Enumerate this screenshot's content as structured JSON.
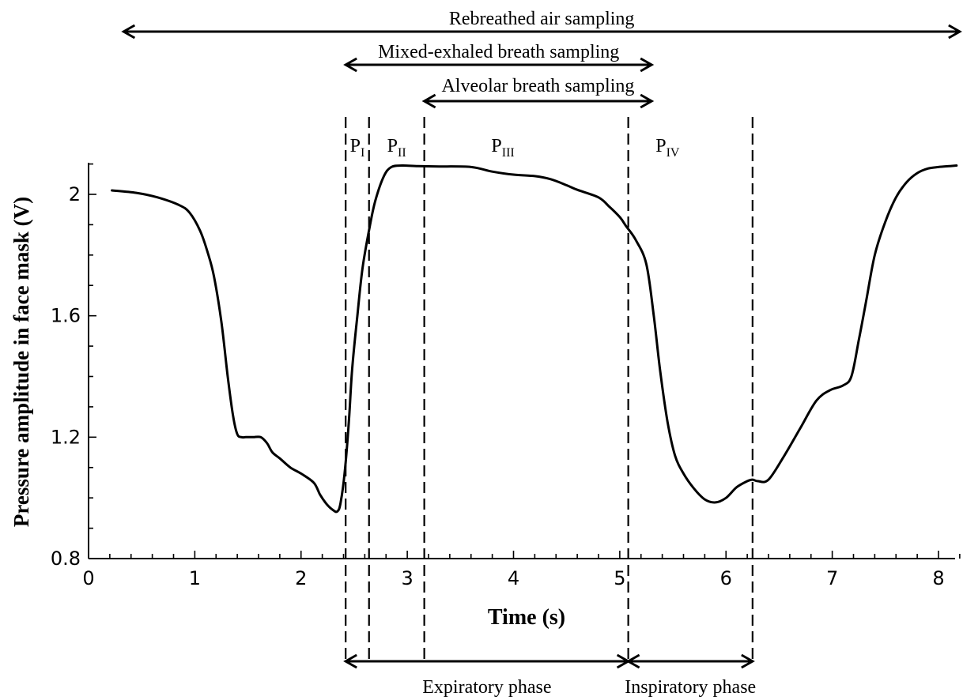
{
  "chart_data": {
    "type": "line",
    "title": "",
    "xlabel": "Time (s)",
    "ylabel": "Pressure amplitude in face mask (V)",
    "xlim": [
      0,
      8.2
    ],
    "ylim": [
      0.8,
      2.1
    ],
    "xticks": [
      0,
      1,
      2,
      3,
      4,
      5,
      6,
      7,
      8
    ],
    "xtick_labels": [
      "0",
      "1",
      "2",
      "3",
      "4",
      "5",
      "6",
      "7",
      "8"
    ],
    "yticks": [
      0.8,
      1.2,
      1.6,
      2.0
    ],
    "ytick_labels": [
      "0.8",
      "1.2",
      "1.6",
      "2"
    ],
    "grid": false,
    "series": [
      {
        "x": [
          0.22,
          0.45,
          0.65,
          0.85,
          0.95,
          1.05,
          1.12,
          1.18,
          1.25,
          1.31,
          1.36,
          1.4,
          1.44,
          1.48,
          1.55,
          1.62,
          1.68,
          1.73,
          1.8,
          1.9,
          2.0,
          2.12,
          2.18,
          2.24,
          2.3,
          2.34,
          2.37,
          2.41,
          2.45,
          2.48,
          2.53,
          2.58,
          2.65,
          2.7,
          2.78,
          2.85,
          2.95,
          3.1,
          3.3,
          3.6,
          3.8,
          4.0,
          4.2,
          4.35,
          4.5,
          4.6,
          4.8,
          4.9,
          5.0,
          5.06,
          5.15,
          5.25,
          5.32,
          5.38,
          5.45,
          5.52,
          5.6,
          5.7,
          5.8,
          5.9,
          6.0,
          6.1,
          6.2,
          6.25,
          6.3,
          6.4,
          6.55,
          6.7,
          6.85,
          6.98,
          7.1,
          7.18,
          7.25,
          7.32,
          7.4,
          7.5,
          7.6,
          7.7,
          7.8,
          7.9,
          8.0,
          8.1,
          8.17
        ],
        "values": [
          2.013,
          2.005,
          1.99,
          1.965,
          1.94,
          1.88,
          1.81,
          1.73,
          1.58,
          1.4,
          1.27,
          1.21,
          1.2,
          1.2,
          1.2,
          1.2,
          1.18,
          1.15,
          1.13,
          1.1,
          1.08,
          1.05,
          1.01,
          0.98,
          0.96,
          0.955,
          0.98,
          1.08,
          1.25,
          1.42,
          1.6,
          1.76,
          1.9,
          1.98,
          2.06,
          2.09,
          2.095,
          2.093,
          2.092,
          2.09,
          2.075,
          2.065,
          2.06,
          2.05,
          2.03,
          2.015,
          1.99,
          1.96,
          1.925,
          1.895,
          1.85,
          1.77,
          1.6,
          1.42,
          1.25,
          1.14,
          1.08,
          1.03,
          0.995,
          0.985,
          1.0,
          1.035,
          1.055,
          1.06,
          1.055,
          1.06,
          1.14,
          1.23,
          1.32,
          1.355,
          1.37,
          1.4,
          1.52,
          1.65,
          1.8,
          1.91,
          1.99,
          2.04,
          2.07,
          2.085,
          2.09,
          2.093,
          2.095
        ]
      }
    ],
    "phase_markers": [
      {
        "x": 2.42
      },
      {
        "x": 2.64
      },
      {
        "x": 3.16
      },
      {
        "x": 5.08
      },
      {
        "x": 6.25
      }
    ],
    "phase_labels": [
      {
        "base": "P",
        "sub": "I",
        "x": 2.53
      },
      {
        "base": "P",
        "sub": "II",
        "x": 2.9
      },
      {
        "base": "P",
        "sub": "III",
        "x": 3.9
      },
      {
        "base": "P",
        "sub": "IV",
        "x": 5.45
      }
    ],
    "sampling_ranges": [
      {
        "label": "Rebreathed air sampling",
        "x_start": 0.33,
        "x_end": 8.2
      },
      {
        "label": "Mixed-exhaled breath sampling",
        "x_start": 2.42,
        "x_end": 5.3
      },
      {
        "label": "Alveolar breath sampling",
        "x_start": 3.16,
        "x_end": 5.3
      }
    ],
    "breath_phases": [
      {
        "label": "Expiratory phase",
        "x_start": 2.42,
        "x_end": 5.08
      },
      {
        "label": "Inspiratory phase",
        "x_start": 5.08,
        "x_end": 6.25
      }
    ]
  }
}
